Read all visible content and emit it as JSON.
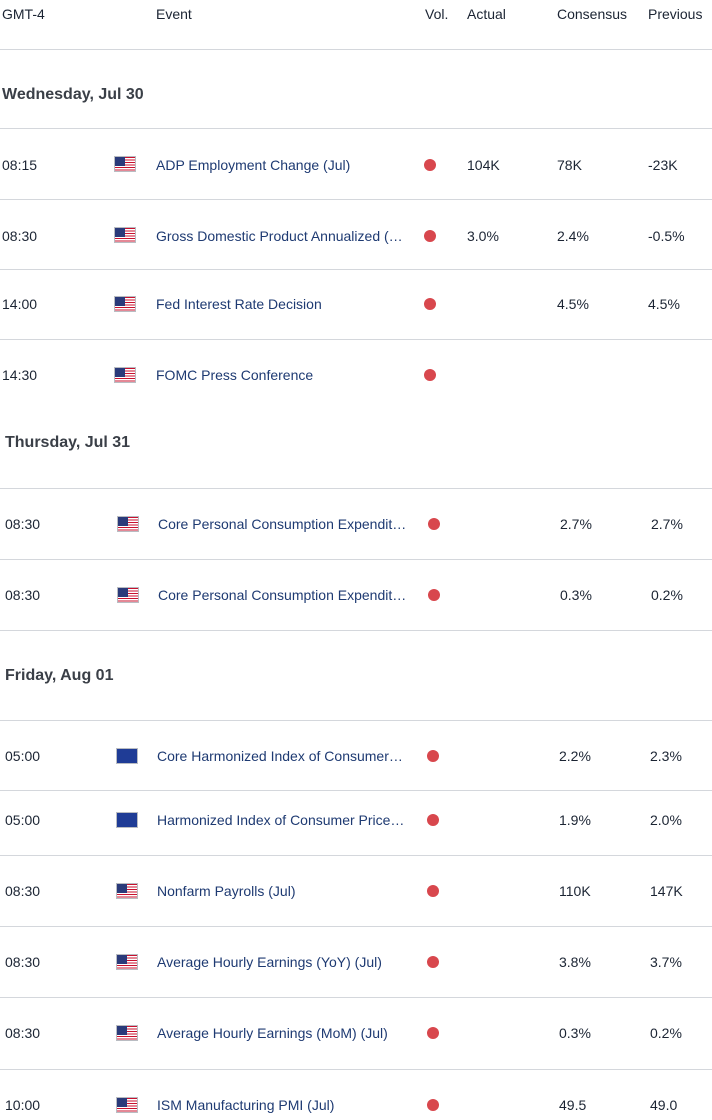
{
  "header": {
    "timezone": "GMT-4",
    "event": "Event",
    "vol": "Vol.",
    "actual": "Actual",
    "consensus": "Consensus",
    "previous": "Previous"
  },
  "colors": {
    "volatility_high": "#d8474d",
    "event_link": "#1e3a72",
    "divider": "#d4d7dc"
  },
  "days": [
    {
      "label": "Wednesday, Jul 30",
      "events": [
        {
          "time": "08:15",
          "flag": "us-flag-icon",
          "event": "ADP Employment Change (Jul)",
          "actual": "104K",
          "consensus": "78K",
          "previous": "-23K"
        },
        {
          "time": "08:30",
          "flag": "us-flag-icon",
          "event": "Gross Domestic Product Annualized (…",
          "actual": "3.0%",
          "consensus": "2.4%",
          "previous": "-0.5%"
        },
        {
          "time": "14:00",
          "flag": "us-flag-icon",
          "event": "Fed Interest Rate Decision",
          "actual": "",
          "consensus": "4.5%",
          "previous": "4.5%"
        },
        {
          "time": "14:30",
          "flag": "us-flag-icon",
          "event": "FOMC Press Conference",
          "actual": "",
          "consensus": "",
          "previous": ""
        }
      ]
    },
    {
      "label": "Thursday, Jul 31",
      "events": [
        {
          "time": "08:30",
          "flag": "us-flag-icon",
          "event": "Core Personal Consumption Expendit…",
          "actual": "",
          "consensus": "2.7%",
          "previous": "2.7%"
        },
        {
          "time": "08:30",
          "flag": "us-flag-icon",
          "event": "Core Personal Consumption Expendit…",
          "actual": "",
          "consensus": "0.3%",
          "previous": "0.2%"
        }
      ]
    },
    {
      "label": "Friday, Aug 01",
      "events": [
        {
          "time": "05:00",
          "flag": "eu-flag-icon",
          "event": "Core Harmonized Index of Consumer…",
          "actual": "",
          "consensus": "2.2%",
          "previous": "2.3%"
        },
        {
          "time": "05:00",
          "flag": "eu-flag-icon",
          "event": "Harmonized Index of Consumer Price…",
          "actual": "",
          "consensus": "1.9%",
          "previous": "2.0%"
        },
        {
          "time": "08:30",
          "flag": "us-flag-icon",
          "event": "Nonfarm Payrolls (Jul)",
          "actual": "",
          "consensus": "110K",
          "previous": "147K"
        },
        {
          "time": "08:30",
          "flag": "us-flag-icon",
          "event": "Average Hourly Earnings (YoY) (Jul)",
          "actual": "",
          "consensus": "3.8%",
          "previous": "3.7%"
        },
        {
          "time": "08:30",
          "flag": "us-flag-icon",
          "event": "Average Hourly Earnings (MoM) (Jul)",
          "actual": "",
          "consensus": "0.3%",
          "previous": "0.2%"
        },
        {
          "time": "10:00",
          "flag": "us-flag-icon",
          "event": "ISM Manufacturing PMI (Jul)",
          "actual": "",
          "consensus": "49.5",
          "previous": "49.0"
        }
      ]
    }
  ]
}
